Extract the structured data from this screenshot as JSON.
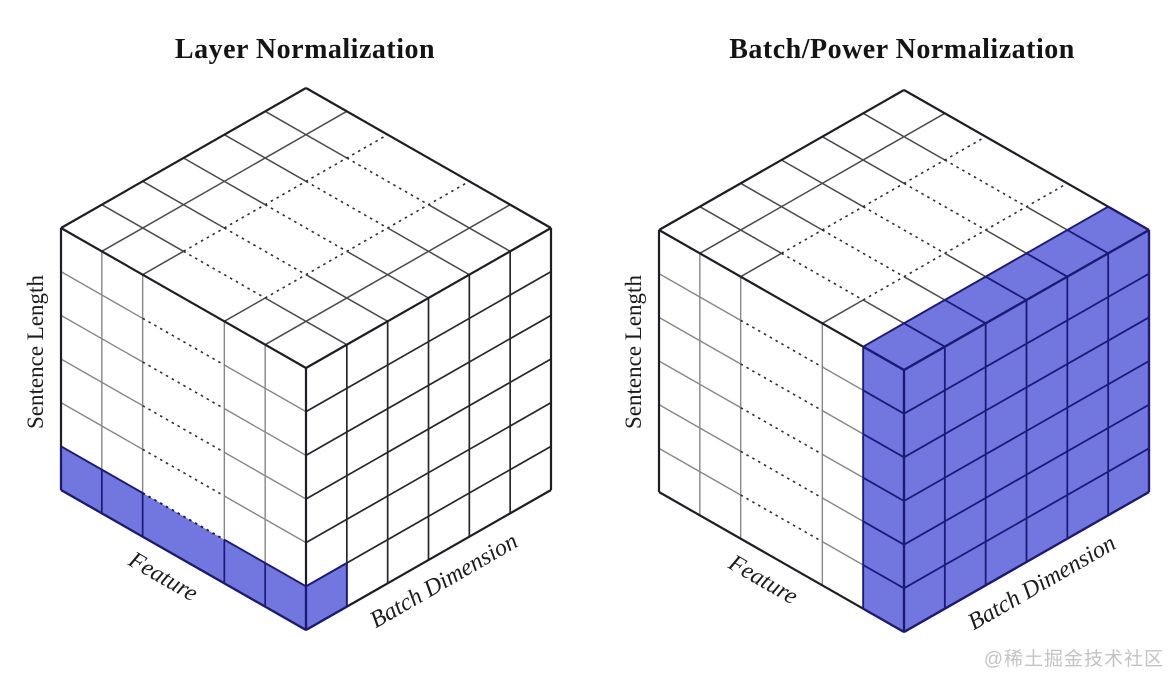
{
  "figure": {
    "background": "#ffffff"
  },
  "colors": {
    "highlight_fill": "#7277df",
    "highlight_border": "#1a1a78",
    "cube_edge": "#1d1d24",
    "left_face_grid": "#878787",
    "top_face_grid": "#4a4a4a",
    "dashed_grid": "#2e2e2e",
    "right_face_grid": "#27272b",
    "title_color": "#141414",
    "watermark_color": "#c3c3c3"
  },
  "cubes": [
    {
      "id": "layer-norm",
      "title": "Layer Normalization",
      "axis_labels": {
        "vertical": "Sentence Length",
        "bottom_left": "Feature",
        "bottom_right": "Batch Dimension"
      },
      "grid": {
        "feature_weights": [
          1,
          1,
          2,
          1,
          1
        ],
        "batch_cells": 6,
        "sentence_cells": 6
      },
      "highlight": {
        "region": "token-row"
      }
    },
    {
      "id": "batch-power-norm",
      "title": "Batch/Power Normalization",
      "axis_labels": {
        "vertical": "Sentence Length",
        "bottom_left": "Feature",
        "bottom_right": "Batch Dimension"
      },
      "grid": {
        "feature_weights": [
          1,
          1,
          2,
          1,
          1
        ],
        "batch_cells": 6,
        "sentence_cells": 6
      },
      "highlight": {
        "region": "feature-slice"
      }
    }
  ],
  "watermark": {
    "text": "@稀土掘金技术社区"
  }
}
